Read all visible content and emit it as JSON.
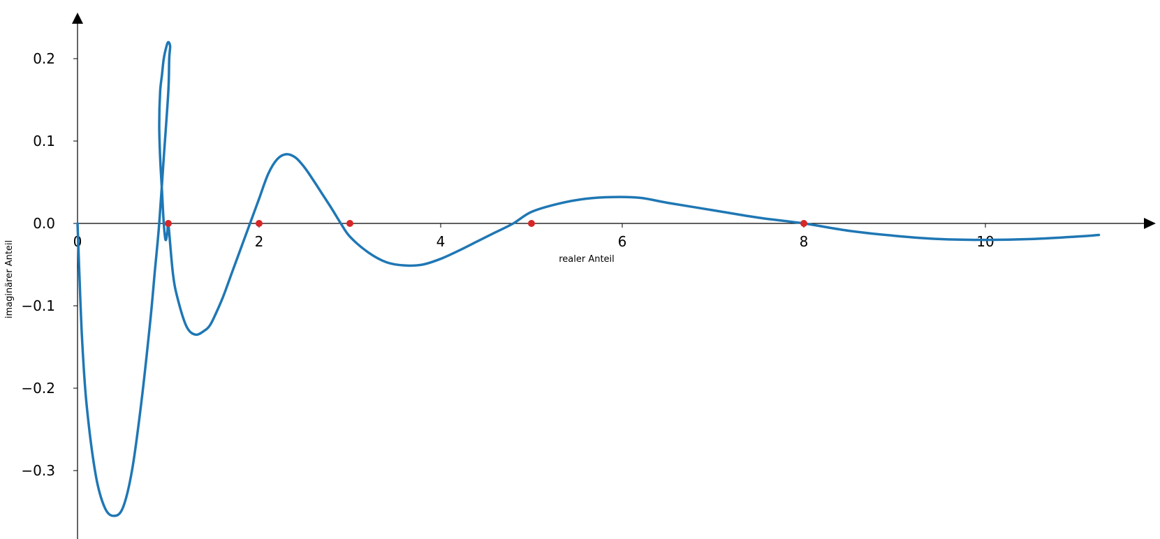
{
  "chart_data": {
    "type": "line",
    "title": "",
    "xlabel": "realer Anteil",
    "ylabel": "imaginärer Anteil",
    "xlim": [
      0,
      11.9
    ],
    "ylim": [
      -0.38,
      0.245
    ],
    "grid": false,
    "legend": "none",
    "colors": {
      "line": "#1f77b4",
      "points": "#d62728",
      "axes": "#000000"
    },
    "x_ticks": [
      {
        "value": 0,
        "label": "0"
      },
      {
        "value": 2,
        "label": "2"
      },
      {
        "value": 4,
        "label": "4"
      },
      {
        "value": 6,
        "label": "6"
      },
      {
        "value": 8,
        "label": "8"
      },
      {
        "value": 10,
        "label": "10"
      }
    ],
    "y_ticks": [
      {
        "value": 0.2,
        "label": "0.2"
      },
      {
        "value": 0.1,
        "label": "0.1"
      },
      {
        "value": 0.0,
        "label": "0.0"
      },
      {
        "value": -0.1,
        "label": "−0.1"
      },
      {
        "value": -0.2,
        "label": "−0.2"
      },
      {
        "value": -0.3,
        "label": "−0.3"
      }
    ],
    "series": [
      {
        "x": [
          0,
          0.02,
          0.05,
          0.1,
          0.2,
          0.3,
          0.4,
          0.5,
          0.6,
          0.7,
          0.8,
          0.85,
          0.9,
          0.95,
          1.0,
          1.01,
          1.02,
          1.0,
          0.98,
          0.95,
          0.93,
          0.91,
          0.9,
          0.91,
          0.93,
          0.95,
          0.97,
          0.99,
          1.0,
          1.05,
          1.1,
          1.2,
          1.3,
          1.4,
          1.45,
          1.5,
          1.6,
          1.7,
          1.8,
          1.9,
          2.0,
          2.1,
          2.2,
          2.3,
          2.4,
          2.5,
          2.6,
          2.7,
          2.8,
          2.9,
          3.0,
          3.2,
          3.4,
          3.6,
          3.8,
          4.0,
          4.2,
          4.4,
          4.6,
          4.8,
          5.0,
          5.3,
          5.6,
          5.9,
          6.2,
          6.5,
          7.0,
          7.5,
          8.0,
          8.5,
          9.0,
          9.5,
          10.0,
          10.5,
          11.0,
          11.25
        ],
        "y": [
          0,
          -0.06,
          -0.14,
          -0.22,
          -0.305,
          -0.345,
          -0.355,
          -0.345,
          -0.3,
          -0.22,
          -0.12,
          -0.06,
          0.0,
          0.08,
          0.16,
          0.2,
          0.215,
          0.22,
          0.215,
          0.2,
          0.18,
          0.16,
          0.12,
          0.08,
          0.04,
          0.0,
          -0.02,
          -0.01,
          0.0,
          -0.06,
          -0.09,
          -0.125,
          -0.135,
          -0.13,
          -0.125,
          -0.115,
          -0.09,
          -0.06,
          -0.03,
          0.0,
          0.03,
          0.06,
          0.078,
          0.084,
          0.08,
          0.068,
          0.052,
          0.035,
          0.018,
          0.0,
          -0.016,
          -0.035,
          -0.047,
          -0.051,
          -0.05,
          -0.043,
          -0.033,
          -0.022,
          -0.011,
          0.0,
          0.014,
          0.024,
          0.03,
          0.032,
          0.031,
          0.025,
          0.016,
          0.007,
          0.0,
          -0.009,
          -0.015,
          -0.019,
          -0.02,
          -0.019,
          -0.016,
          -0.014
        ]
      }
    ],
    "points": [
      {
        "x": 1,
        "y": 0
      },
      {
        "x": 2,
        "y": 0
      },
      {
        "x": 3,
        "y": 0
      },
      {
        "x": 5,
        "y": 0
      },
      {
        "x": 8,
        "y": 0
      }
    ]
  }
}
